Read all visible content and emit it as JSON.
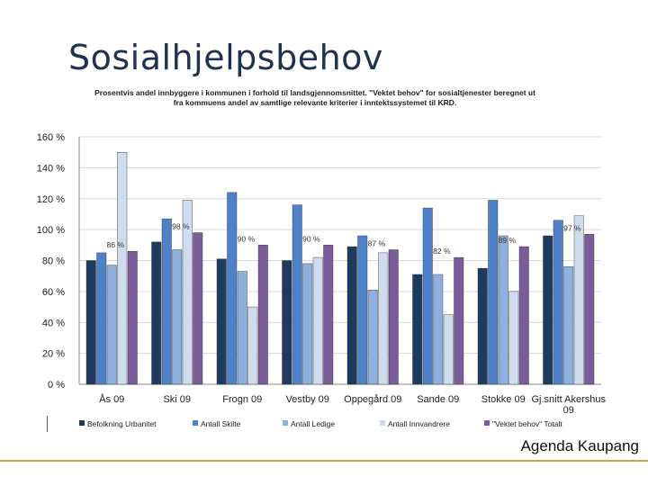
{
  "slide": {
    "title": "Sosialhjelpsbehov",
    "footer": "Agenda Kaupang"
  },
  "chart_data": {
    "type": "bar",
    "title": "Prosentvis andel innbyggere i kommunen i forhold til landsgjennomsnittet. \"Vektet behov\" for sosialtjenester beregnet ut fra kommuens andel av samtlige relevante kriterier i inntektssystemet til KRD.",
    "xlabel": "",
    "ylabel": "",
    "ylim": [
      0,
      160
    ],
    "yticks": [
      0,
      20,
      40,
      60,
      80,
      100,
      120,
      140,
      160
    ],
    "ytick_labels": [
      "0 %",
      "20 %",
      "40 %",
      "60 %",
      "80 %",
      "100 %",
      "120 %",
      "140 %",
      "160 %"
    ],
    "grid": true,
    "legend_position": "bottom",
    "categories": [
      "Ås 09",
      "Ski 09",
      "Frogn 09",
      "Vestby 09",
      "Oppegård 09",
      "Sande 09",
      "Stokke 09",
      "Gj.snitt Akershus 09"
    ],
    "series": [
      {
        "name": "Befolkning Urbanitet",
        "color": "#1f3a5f",
        "values": [
          80,
          92,
          81,
          80,
          89,
          71,
          75,
          96
        ]
      },
      {
        "name": "Antall Skilte",
        "color": "#4f81c8",
        "values": [
          85,
          107,
          124,
          116,
          96,
          114,
          119,
          106
        ]
      },
      {
        "name": "Antall Ledige",
        "color": "#8eb0de",
        "values": [
          77,
          87,
          73,
          78,
          61,
          71,
          96,
          76
        ]
      },
      {
        "name": "Antall Innvandrere",
        "color": "#cfdcee",
        "values": [
          150,
          119,
          50,
          82,
          85,
          45,
          60,
          109
        ]
      },
      {
        "name": "\"Vektet behov\" Totalt",
        "color": "#7a5c9a",
        "values": [
          86,
          98,
          90,
          90,
          87,
          82,
          89,
          97
        ]
      }
    ],
    "data_labels": [
      "86 %",
      "98 %",
      "90 %",
      "90 %",
      "87 %",
      "82 %",
      "89 %",
      "97 %"
    ]
  }
}
